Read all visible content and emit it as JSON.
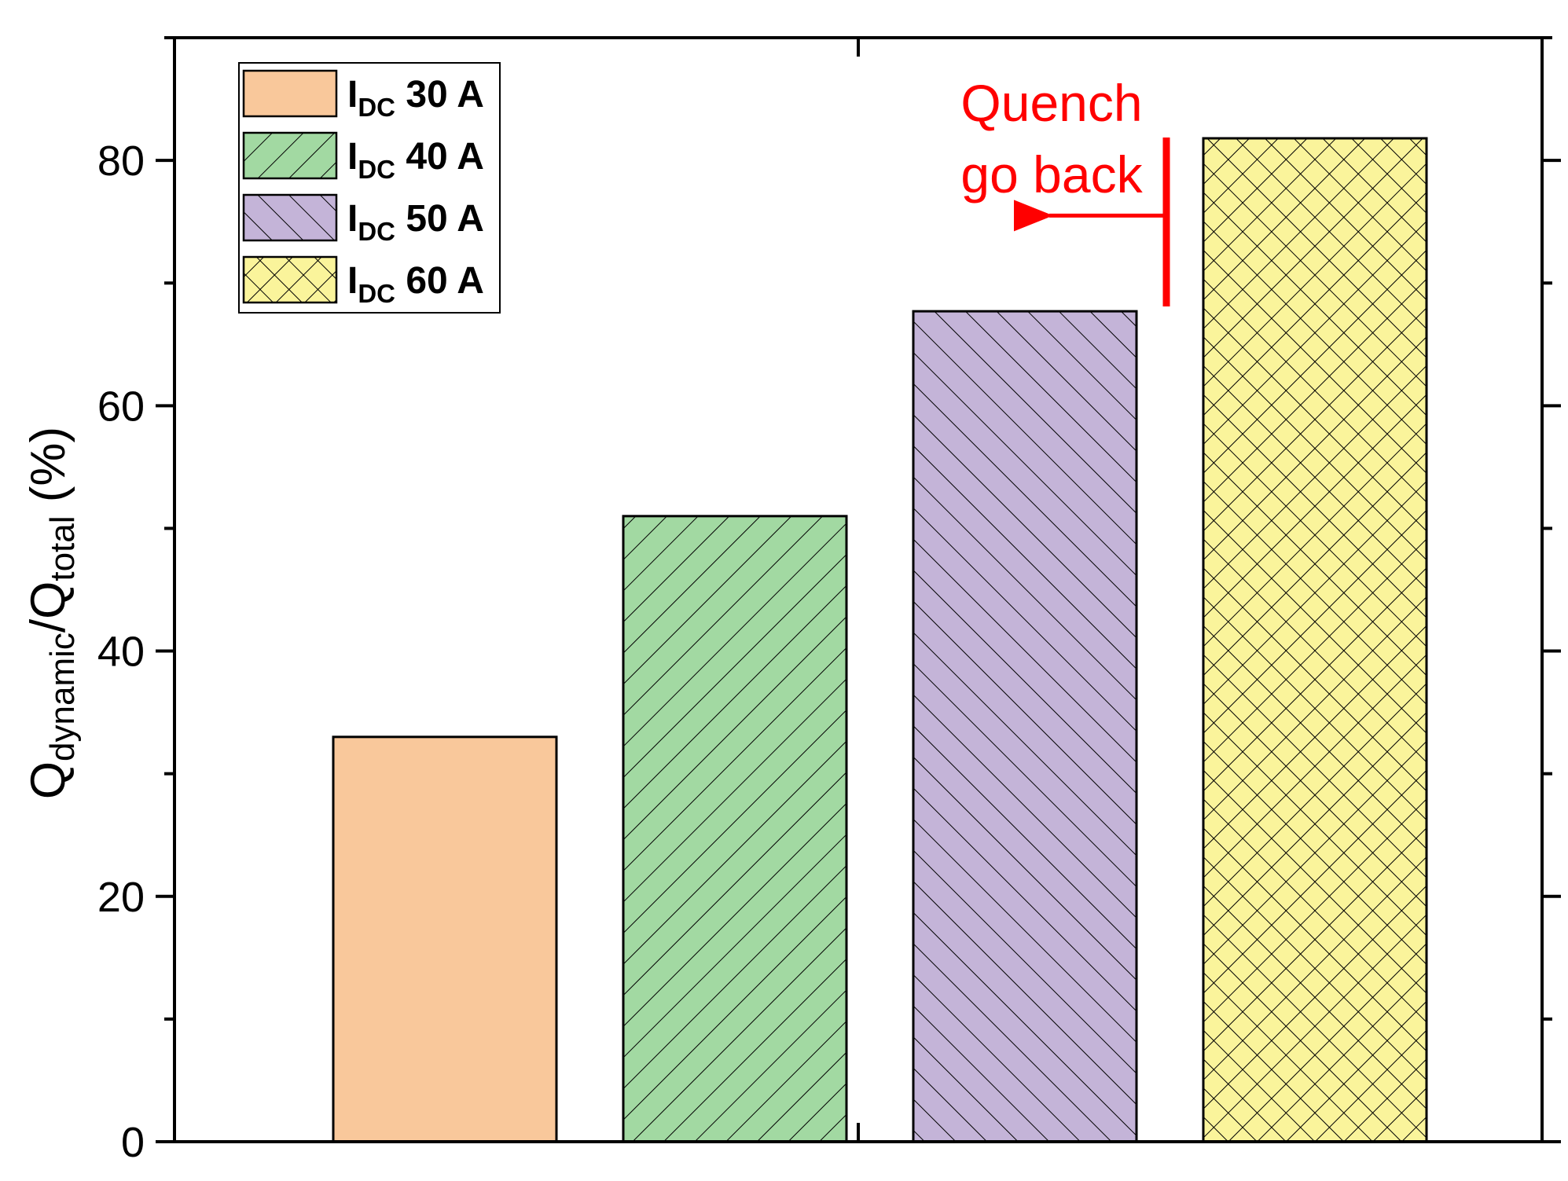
{
  "chart_data": {
    "type": "bar",
    "categories": [
      "I_DC 30 A",
      "I_DC 40 A",
      "I_DC 50 A",
      "I_DC 60 A"
    ],
    "values": [
      33,
      51,
      67.7,
      81.8
    ],
    "ylim": [
      0,
      90
    ],
    "yticks": [
      0,
      20,
      40,
      60,
      80
    ],
    "ylabel": {
      "q1": "Q",
      "sub1": "dynamic",
      "slash": "/Q",
      "sub2": "total",
      "unit": " (%)"
    },
    "legend": {
      "placement": "top-left",
      "entries": [
        {
          "main": "I",
          "sub": "DC",
          "rest": " 30 A",
          "fill": "#f9c89b",
          "pattern": "none"
        },
        {
          "main": "I",
          "sub": "DC",
          "rest": " 40 A",
          "fill": "#a2d9a2",
          "pattern": "forward-diagonal"
        },
        {
          "main": "I",
          "sub": "DC",
          "rest": " 50 A",
          "fill": "#c4b4d8",
          "pattern": "back-diagonal"
        },
        {
          "main": "I",
          "sub": "DC",
          "rest": " 60 A",
          "fill": "#faf49b",
          "pattern": "cross-hatch"
        }
      ]
    },
    "annotation": {
      "line1": "Quench",
      "line2": "go back",
      "color": "#ff0000",
      "marker_value": 75.5
    },
    "grid": false
  }
}
